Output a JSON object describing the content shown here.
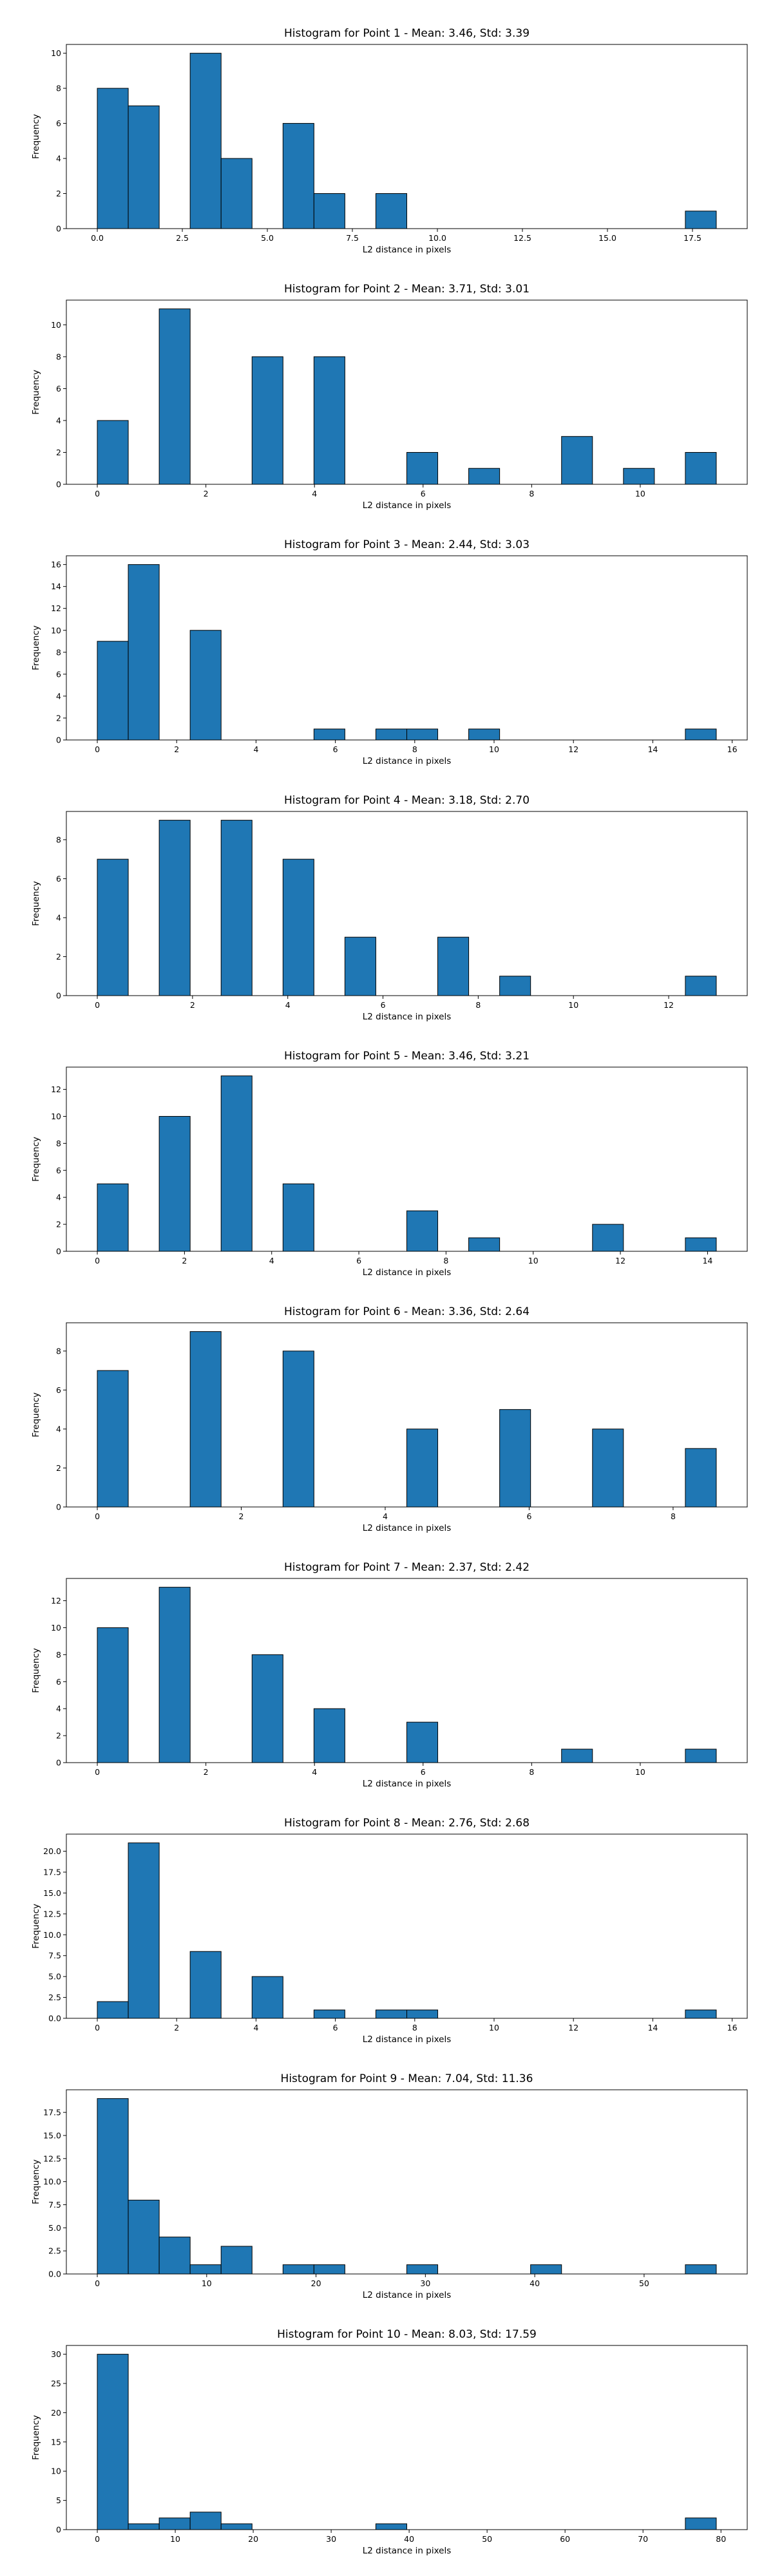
{
  "figure": {
    "background": "#ffffff",
    "bar_color": "#1f77b4",
    "edge_color": "#000000"
  },
  "chart_data": [
    {
      "type": "bar",
      "title": "Histogram for Point 1 - Mean: 3.46, Std: 3.39",
      "xlabel": "L2 distance in pixels",
      "ylabel": "Frequency",
      "xlim": [
        -0.91,
        19.11
      ],
      "ylim": [
        0,
        10.5
      ],
      "xticks": [
        0,
        2.5,
        5,
        7.5,
        10,
        12.5,
        15,
        17.5
      ],
      "xtick_labels": [
        "0.0",
        "2.5",
        "5.0",
        "7.5",
        "10.0",
        "12.5",
        "15.0",
        "17.5"
      ],
      "yticks": [
        0,
        2,
        4,
        6,
        8,
        10
      ],
      "ytick_labels": [
        "0",
        "2",
        "4",
        "6",
        "8",
        "10"
      ],
      "bins": [
        [
          0,
          0.91,
          8
        ],
        [
          0.91,
          1.82,
          7
        ],
        [
          2.73,
          3.64,
          10
        ],
        [
          3.64,
          4.55,
          4
        ],
        [
          5.46,
          6.37,
          6
        ],
        [
          6.37,
          7.28,
          2
        ],
        [
          8.19,
          9.1,
          2
        ],
        [
          17.29,
          18.2,
          1
        ]
      ]
    },
    {
      "type": "bar",
      "title": "Histogram for Point 2 - Mean: 3.71, Std: 3.01",
      "xlabel": "L2 distance in pixels",
      "ylabel": "Frequency",
      "xlim": [
        -0.57,
        11.97
      ],
      "ylim": [
        0,
        11.55
      ],
      "xticks": [
        0,
        2,
        4,
        6,
        8,
        10
      ],
      "xtick_labels": [
        "0",
        "2",
        "4",
        "6",
        "8",
        "10"
      ],
      "yticks": [
        0,
        2,
        4,
        6,
        8,
        10
      ],
      "ytick_labels": [
        "0",
        "2",
        "4",
        "6",
        "8",
        "10"
      ],
      "bins": [
        [
          0,
          0.57,
          4
        ],
        [
          1.14,
          1.71,
          11
        ],
        [
          2.85,
          3.42,
          8
        ],
        [
          3.99,
          4.56,
          8
        ],
        [
          5.7,
          6.27,
          2
        ],
        [
          6.84,
          7.41,
          1
        ],
        [
          8.55,
          9.12,
          3
        ],
        [
          9.69,
          10.26,
          1
        ],
        [
          10.83,
          11.4,
          2
        ]
      ]
    },
    {
      "type": "bar",
      "title": "Histogram for Point 3 - Mean: 2.44, Std: 3.03",
      "xlabel": "L2 distance in pixels",
      "ylabel": "Frequency",
      "xlim": [
        -0.78,
        16.38
      ],
      "ylim": [
        0,
        16.8
      ],
      "xticks": [
        0,
        2,
        4,
        6,
        8,
        10,
        12,
        14,
        16
      ],
      "xtick_labels": [
        "0",
        "2",
        "4",
        "6",
        "8",
        "10",
        "12",
        "14",
        "16"
      ],
      "yticks": [
        0,
        2,
        4,
        6,
        8,
        10,
        12,
        14,
        16
      ],
      "ytick_labels": [
        "0",
        "2",
        "4",
        "6",
        "8",
        "10",
        "12",
        "14",
        "16"
      ],
      "bins": [
        [
          0,
          0.78,
          9
        ],
        [
          0.78,
          1.56,
          16
        ],
        [
          2.34,
          3.12,
          10
        ],
        [
          5.46,
          6.24,
          1
        ],
        [
          7.02,
          7.8,
          1
        ],
        [
          7.8,
          8.58,
          1
        ],
        [
          9.36,
          10.14,
          1
        ],
        [
          14.82,
          15.6,
          1
        ]
      ]
    },
    {
      "type": "bar",
      "title": "Histogram for Point 4 - Mean: 3.18, Std: 2.70",
      "xlabel": "L2 distance in pixels",
      "ylabel": "Frequency",
      "xlim": [
        -0.65,
        13.65
      ],
      "ylim": [
        0,
        9.45
      ],
      "xticks": [
        0,
        2,
        4,
        6,
        8,
        10,
        12
      ],
      "xtick_labels": [
        "0",
        "2",
        "4",
        "6",
        "8",
        "10",
        "12"
      ],
      "yticks": [
        0,
        2,
        4,
        6,
        8
      ],
      "ytick_labels": [
        "0",
        "2",
        "4",
        "6",
        "8"
      ],
      "bins": [
        [
          0,
          0.65,
          7
        ],
        [
          1.3,
          1.95,
          9
        ],
        [
          2.6,
          3.25,
          9
        ],
        [
          3.9,
          4.55,
          7
        ],
        [
          5.2,
          5.85,
          3
        ],
        [
          7.15,
          7.8,
          3
        ],
        [
          8.45,
          9.1,
          1
        ],
        [
          12.35,
          13,
          1
        ]
      ]
    },
    {
      "type": "bar",
      "title": "Histogram for Point 5 - Mean: 3.46, Std: 3.21",
      "xlabel": "L2 distance in pixels",
      "ylabel": "Frequency",
      "xlim": [
        -0.71,
        14.91
      ],
      "ylim": [
        0,
        13.65
      ],
      "xticks": [
        0,
        2,
        4,
        6,
        8,
        10,
        12,
        14
      ],
      "xtick_labels": [
        "0",
        "2",
        "4",
        "6",
        "8",
        "10",
        "12",
        "14"
      ],
      "yticks": [
        0,
        2,
        4,
        6,
        8,
        10,
        12
      ],
      "ytick_labels": [
        "0",
        "2",
        "4",
        "6",
        "8",
        "10",
        "12"
      ],
      "bins": [
        [
          0,
          0.71,
          5
        ],
        [
          1.42,
          2.13,
          10
        ],
        [
          2.84,
          3.55,
          13
        ],
        [
          4.26,
          4.97,
          5
        ],
        [
          7.1,
          7.81,
          3
        ],
        [
          8.52,
          9.23,
          1
        ],
        [
          11.36,
          12.07,
          2
        ],
        [
          13.49,
          14.2,
          1
        ]
      ]
    },
    {
      "type": "bar",
      "title": "Histogram for Point 6 - Mean: 3.36, Std: 2.64",
      "xlabel": "L2 distance in pixels",
      "ylabel": "Frequency",
      "xlim": [
        -0.43,
        9.03
      ],
      "ylim": [
        0,
        9.45
      ],
      "xticks": [
        0,
        2,
        4,
        6,
        8
      ],
      "xtick_labels": [
        "0",
        "2",
        "4",
        "6",
        "8"
      ],
      "yticks": [
        0,
        2,
        4,
        6,
        8
      ],
      "ytick_labels": [
        "0",
        "2",
        "4",
        "6",
        "8"
      ],
      "bins": [
        [
          0,
          0.43,
          7
        ],
        [
          1.29,
          1.72,
          9
        ],
        [
          2.58,
          3.01,
          8
        ],
        [
          4.3,
          4.73,
          4
        ],
        [
          5.59,
          6.02,
          5
        ],
        [
          6.88,
          7.31,
          4
        ],
        [
          8.17,
          8.6,
          3
        ]
      ]
    },
    {
      "type": "bar",
      "title": "Histogram for Point 7 - Mean: 2.37, Std: 2.42",
      "xlabel": "L2 distance in pixels",
      "ylabel": "Frequency",
      "xlim": [
        -0.57,
        11.97
      ],
      "ylim": [
        0,
        13.65
      ],
      "xticks": [
        0,
        2,
        4,
        6,
        8,
        10
      ],
      "xtick_labels": [
        "0",
        "2",
        "4",
        "6",
        "8",
        "10"
      ],
      "yticks": [
        0,
        2,
        4,
        6,
        8,
        10,
        12
      ],
      "ytick_labels": [
        "0",
        "2",
        "4",
        "6",
        "8",
        "10",
        "12"
      ],
      "bins": [
        [
          0,
          0.57,
          10
        ],
        [
          1.14,
          1.71,
          13
        ],
        [
          2.85,
          3.42,
          8
        ],
        [
          3.99,
          4.56,
          4
        ],
        [
          5.7,
          6.27,
          3
        ],
        [
          8.55,
          9.12,
          1
        ],
        [
          10.83,
          11.4,
          1
        ]
      ]
    },
    {
      "type": "bar",
      "title": "Histogram for Point 8 - Mean: 2.76, Std: 2.68",
      "xlabel": "L2 distance in pixels",
      "ylabel": "Frequency",
      "xlim": [
        -0.78,
        16.38
      ],
      "ylim": [
        0,
        22.05
      ],
      "xticks": [
        0,
        2,
        4,
        6,
        8,
        10,
        12,
        14,
        16
      ],
      "xtick_labels": [
        "0",
        "2",
        "4",
        "6",
        "8",
        "10",
        "12",
        "14",
        "16"
      ],
      "yticks": [
        0,
        2.5,
        5,
        7.5,
        10,
        12.5,
        15,
        17.5,
        20
      ],
      "ytick_labels": [
        "0.0",
        "2.5",
        "5.0",
        "7.5",
        "10.0",
        "12.5",
        "15.0",
        "17.5",
        "20.0"
      ],
      "bins": [
        [
          0,
          0.78,
          2
        ],
        [
          0.78,
          1.56,
          21
        ],
        [
          2.34,
          3.12,
          8
        ],
        [
          3.9,
          4.68,
          5
        ],
        [
          5.46,
          6.24,
          1
        ],
        [
          7.02,
          7.8,
          1
        ],
        [
          7.8,
          8.58,
          1
        ],
        [
          14.82,
          15.6,
          1
        ]
      ]
    },
    {
      "type": "bar",
      "title": "Histogram for Point 9 - Mean: 7.04, Std: 11.36",
      "xlabel": "L2 distance in pixels",
      "ylabel": "Frequency",
      "xlim": [
        -2.83,
        59.43
      ],
      "ylim": [
        0,
        19.95
      ],
      "xticks": [
        0,
        10,
        20,
        30,
        40,
        50
      ],
      "xtick_labels": [
        "0",
        "10",
        "20",
        "30",
        "40",
        "50"
      ],
      "yticks": [
        0,
        2.5,
        5,
        7.5,
        10,
        12.5,
        15,
        17.5
      ],
      "ytick_labels": [
        "0.0",
        "2.5",
        "5.0",
        "7.5",
        "10.0",
        "12.5",
        "15.0",
        "17.5"
      ],
      "bins": [
        [
          0,
          2.83,
          19
        ],
        [
          2.83,
          5.66,
          8
        ],
        [
          5.66,
          8.49,
          4
        ],
        [
          8.49,
          11.32,
          1
        ],
        [
          11.32,
          14.15,
          3
        ],
        [
          16.98,
          19.81,
          1
        ],
        [
          19.81,
          22.64,
          1
        ],
        [
          28.3,
          31.13,
          1
        ],
        [
          39.62,
          42.45,
          1
        ],
        [
          53.77,
          56.6,
          1
        ]
      ]
    },
    {
      "type": "bar",
      "title": "Histogram for Point 10 - Mean: 8.03, Std: 17.59",
      "xlabel": "L2 distance in pixels",
      "ylabel": "Frequency",
      "xlim": [
        -3.97,
        83.37
      ],
      "ylim": [
        0,
        31.5
      ],
      "xticks": [
        0,
        10,
        20,
        30,
        40,
        50,
        60,
        70,
        80
      ],
      "xtick_labels": [
        "0",
        "10",
        "20",
        "30",
        "40",
        "50",
        "60",
        "70",
        "80"
      ],
      "yticks": [
        0,
        5,
        10,
        15,
        20,
        25,
        30
      ],
      "ytick_labels": [
        "0",
        "5",
        "10",
        "15",
        "20",
        "25",
        "30"
      ],
      "bins": [
        [
          0,
          3.97,
          30
        ],
        [
          3.97,
          7.94,
          1
        ],
        [
          7.94,
          11.91,
          2
        ],
        [
          11.91,
          15.88,
          3
        ],
        [
          15.88,
          19.85,
          1
        ],
        [
          35.73,
          39.7,
          1
        ],
        [
          75.43,
          79.4,
          2
        ]
      ]
    }
  ]
}
